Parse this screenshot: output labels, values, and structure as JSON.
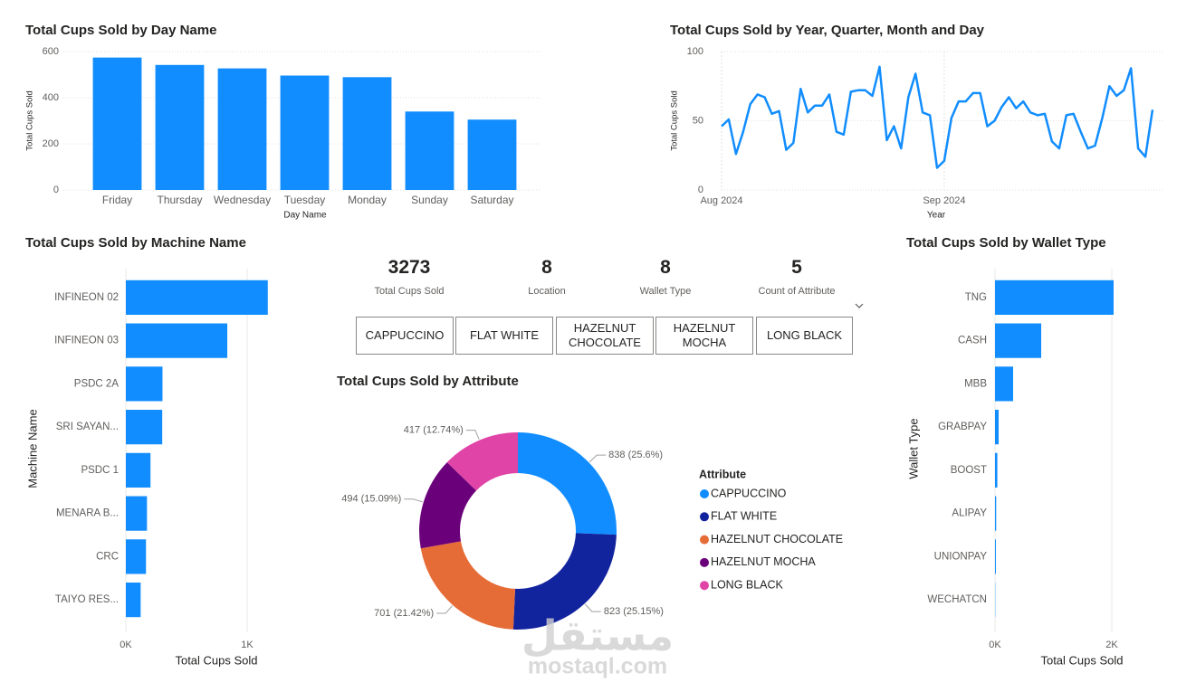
{
  "chart_data": [
    {
      "type": "bar",
      "title": "Total Cups Sold by Day Name",
      "categories": [
        "Friday",
        "Thursday",
        "Wednesday",
        "Tuesday",
        "Monday",
        "Sunday",
        "Saturday"
      ],
      "values": [
        574,
        542,
        527,
        496,
        489,
        340,
        305
      ],
      "color": "#118DFF",
      "xlabel": "Day Name",
      "ylabel": "Total Cups Sold",
      "ylim": [
        0,
        600
      ],
      "yticks": [
        0,
        200,
        400,
        600
      ],
      "grid": true
    },
    {
      "type": "line",
      "title": "Total Cups Sold by Year, Quarter, Month and Day",
      "xlabel": "Year",
      "ylabel": "Total Cups Sold",
      "color": "#118DFF",
      "values": [
        46,
        51,
        26,
        42,
        62,
        69,
        67,
        55,
        57,
        29,
        34,
        73,
        56,
        61,
        61,
        69,
        42,
        40,
        71,
        72,
        72,
        68,
        89,
        36,
        46,
        30,
        67,
        84,
        56,
        54,
        16,
        21,
        52,
        64,
        64,
        70,
        70,
        46,
        50,
        60,
        67,
        59,
        64,
        56,
        54,
        55,
        35,
        30,
        54,
        55,
        42,
        30,
        32,
        52,
        75,
        68,
        72,
        88,
        30,
        24,
        58
      ],
      "xlim": [
        0,
        60
      ],
      "xticks": [
        {
          "value": 0,
          "label": "Aug 2024"
        },
        {
          "value": 31,
          "label": "Sep 2024"
        }
      ],
      "ylim": [
        0,
        100
      ],
      "yticks": [
        0,
        50,
        100
      ],
      "grid": true
    },
    {
      "type": "barh",
      "title": "Total Cups Sold by Machine Name",
      "categories": [
        "INFINEON 02",
        "INFINEON 03",
        "PSDC 2A",
        "SRI SAYAN...",
        "PSDC 1",
        "MENARA B...",
        "CRC",
        "TAIYO RES..."
      ],
      "values": [
        1170,
        836,
        302,
        300,
        203,
        174,
        166,
        122
      ],
      "color": "#118DFF",
      "xlabel": "Total Cups Sold",
      "ylabel": "Machine Name",
      "xlim": [
        0,
        1200
      ],
      "xticks": [
        {
          "value": 0,
          "label": "0K"
        },
        {
          "value": 1000,
          "label": "1K"
        }
      ],
      "grid": true
    },
    {
      "type": "barh",
      "title": "Total Cups Sold by Wallet Type",
      "categories": [
        "TNG",
        "CASH",
        "MBB",
        "GRABPAY",
        "BOOST",
        "ALIPAY",
        "UNIONPAY",
        "WECHATCN"
      ],
      "values": [
        2031,
        791,
        310,
        62,
        40,
        20,
        15,
        4
      ],
      "color": "#118DFF",
      "xlabel": "Total Cups Sold",
      "ylabel": "Wallet Type",
      "xlim": [
        0,
        2200
      ],
      "xticks": [
        {
          "value": 0,
          "label": "0K"
        },
        {
          "value": 2000,
          "label": "2K"
        }
      ],
      "grid": true
    },
    {
      "type": "donut",
      "title": "Total Cups Sold by Attribute",
      "legend_title": "Attribute",
      "legend": "right",
      "categories": [
        "CAPPUCCINO",
        "FLAT WHITE",
        "HAZELNUT CHOCOLATE",
        "HAZELNUT MOCHA",
        "LONG BLACK"
      ],
      "values": [
        838,
        823,
        701,
        494,
        417
      ],
      "value_labels": [
        "838 (25.6%)",
        "823 (25.15%)",
        "701 (21.42%)",
        "494 (15.09%)",
        "417 (12.74%)"
      ],
      "colors": [
        "#118DFF",
        "#12239E",
        "#E66C37",
        "#6B007B",
        "#E044A7"
      ]
    }
  ],
  "cards": [
    {
      "value": 3273,
      "label": "Total Cups Sold"
    },
    {
      "value": 8,
      "label": "Location"
    },
    {
      "value": 8,
      "label": "Wallet Type"
    },
    {
      "value": 5,
      "label": "Count of Attribute"
    }
  ],
  "slicer": {
    "items": [
      "CAPPUCCINO",
      "FLAT WHITE",
      "HAZELNUT CHOCOLATE",
      "HAZELNUT MOCHA",
      "LONG BLACK"
    ]
  },
  "watermark": {
    "arabic": "مستقل",
    "latin": "mostaql.com"
  }
}
